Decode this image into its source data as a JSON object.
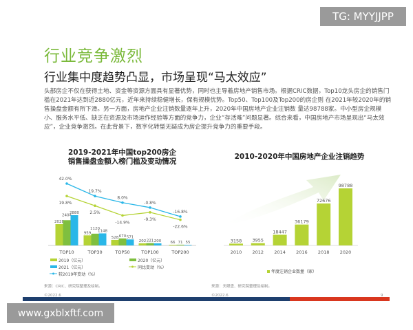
{
  "header": {
    "title": "行业竞争激烈",
    "subtitle": "行业集中度趋势凸显，市场呈现“马太效应”"
  },
  "body_text": "头部房企不仅在获得土地、资金等资源方面具有显著优势，同时也主导着房地产销售市场。根据CRIC数据，Top10龙头房企的销售门槛在2021年达到近2880亿元，近年来持续稳健增长，保有规模优势。Top50、Top100及Top200的房企则 在2021年较2020年的销售操盘金额有所下滑。另一方面，房地产企业注销数量逐年上升，2020年中国房地产企业注销数 量达98788家。中小型房企规模小、服务水平低、缺乏在资源及市场运作经验等方面的竞争力，企业“存活难”问题显著。综合来看，中国房地产市场呈现出“马太效应”，企业竞争激烈。在此背景下，数字化转型无疑成为房企提升竞争力的重要手段。",
  "watermarks": {
    "top": "TG: MYYJJPP",
    "bottom": "www.gxblxftf.com"
  },
  "footer": {
    "left_source": "来源：CRIC、研究院整理及绘制。",
    "left_copy": "©2022.6",
    "right_source": "来源：天眼查、研究院整理及绘制。",
    "right_copy": "©2022.6",
    "page": "9"
  },
  "colors": {
    "green_title": "#7ab93a",
    "c2019": "#b5d335",
    "c2020": "#7fbf3f",
    "c2021": "#2ab7e8",
    "blue_bar": "#1e3f6e",
    "red_bar": "#d9371f"
  },
  "chart_data": [
    {
      "type": "bar",
      "title": "2019-2021年中国top200房企销售操盘金额入榜门槛及变动情况",
      "title_line1": "2019-2021年中国top200房企",
      "title_line2": "销售操盘金额入榜门槛及变动情况",
      "categories": [
        "TOP10",
        "TOP30",
        "TOP50",
        "TOP100",
        "TOP200"
      ],
      "series": [
        {
          "name": "2019（亿元）",
          "values": [
            2028,
            959,
            528,
            202,
            66
          ]
        },
        {
          "name": "2020（亿元）",
          "values": [
            2404,
            1120,
            670,
            221,
            71
          ]
        },
        {
          "name": "2021（亿元）",
          "values": [
            2880,
            1148,
            571,
            200,
            55
          ]
        }
      ],
      "lines": [
        {
          "name": "同比变动（%）",
          "values": [
            19.8,
            2.5,
            -14.9,
            -9.3,
            -22.6
          ],
          "labels": [
            "19.8%",
            "2.5%",
            "-14.9%",
            "-9.3%",
            "-22.6%"
          ]
        },
        {
          "name": "较2019年变动（%）",
          "values": [
            42.0,
            19.7,
            8.0,
            -0.8,
            -16.8
          ],
          "labels": [
            "42.0%",
            "19.7%",
            "8.0%",
            "-0.8%",
            "-16.8%"
          ]
        }
      ]
    },
    {
      "type": "bar",
      "title": "2010-2020年中国房地产企业注销趋势",
      "categories": [
        "2010",
        "2012",
        "2014",
        "2016",
        "2018",
        "2020"
      ],
      "series": [
        {
          "name": "年度注销企业数量（家）",
          "values": [
            3158,
            3955,
            18447,
            36179,
            72676,
            98788
          ]
        }
      ]
    }
  ]
}
